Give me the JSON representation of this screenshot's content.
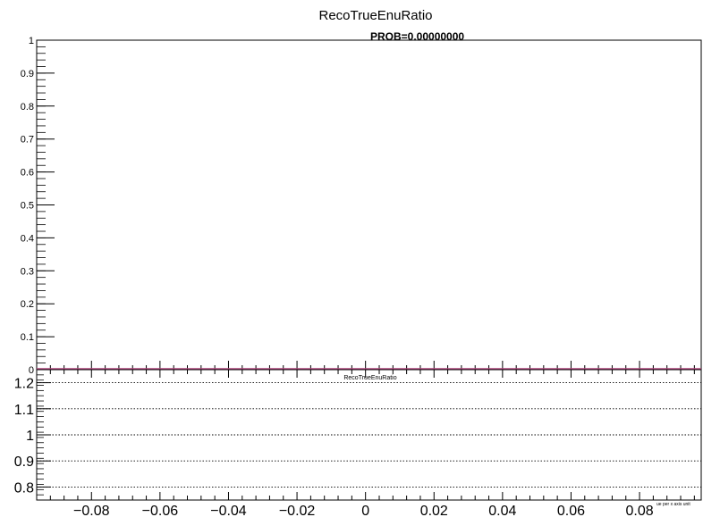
{
  "chart_data": [
    {
      "type": "line",
      "title": "RecoTrueEnuRatio",
      "annotation": "PROB=0.00000000",
      "ylim": [
        0,
        1
      ],
      "y_ticks": [
        "0",
        "0.1",
        "0.2",
        "0.3",
        "0.4",
        "0.5",
        "0.6",
        "0.7",
        "0.8",
        "0.9",
        "1"
      ],
      "xlim": [
        -0.096,
        0.098
      ],
      "series": [
        {
          "x": [
            -0.096,
            0.098
          ],
          "y": [
            0,
            0
          ],
          "color": "#b2457d"
        }
      ]
    },
    {
      "type": "line",
      "title": "RecoTrueEnuRatio",
      "xlabel": "ue per x axis unit",
      "ylim": [
        0.75,
        1.25
      ],
      "y_ticks": [
        "0.8",
        "0.9",
        "1",
        "1.1",
        "1.2"
      ],
      "y_gridlines": [
        0.8,
        0.9,
        1.0,
        1.1,
        1.2
      ],
      "xlim": [
        -0.096,
        0.098
      ],
      "x_ticks": [
        "−0.08",
        "−0.06",
        "−0.04",
        "−0.02",
        "0",
        "0.02",
        "0.04",
        "0.06",
        "0.08"
      ],
      "grid": true
    }
  ]
}
